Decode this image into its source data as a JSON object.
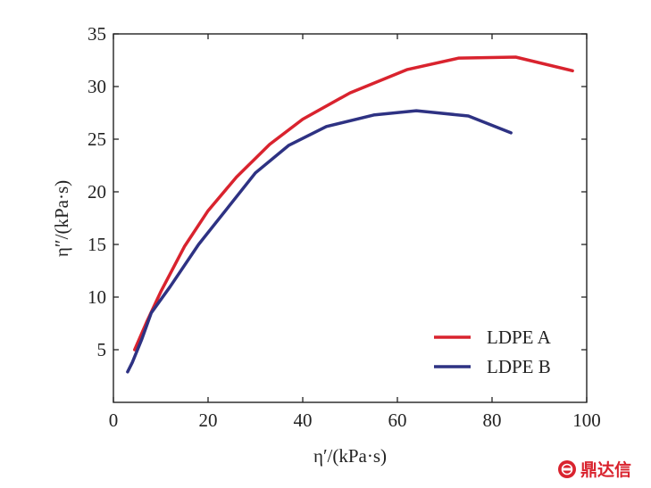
{
  "chart_data": {
    "type": "line",
    "xlabel": "η′/(kPa·s)",
    "ylabel": "η″/(kPa·s)",
    "xlim": [
      0,
      100
    ],
    "ylim": [
      0,
      35
    ],
    "xticks": [
      0,
      20,
      40,
      60,
      80,
      100
    ],
    "yticks": [
      5,
      10,
      15,
      20,
      25,
      30,
      35
    ],
    "grid": false,
    "legend_position": "bottom-right",
    "series": [
      {
        "name": "LDPE A",
        "color": "#d9232e",
        "x": [
          4.5,
          7,
          10,
          15,
          20,
          26,
          33,
          40,
          50,
          62,
          73,
          85,
          97
        ],
        "y": [
          5.0,
          7.6,
          10.5,
          14.8,
          18.2,
          21.4,
          24.5,
          26.9,
          29.4,
          31.6,
          32.7,
          32.8,
          31.5
        ]
      },
      {
        "name": "LDPE B",
        "color": "#2e3283",
        "x": [
          3,
          4,
          6,
          8,
          12,
          18,
          24,
          30,
          37,
          45,
          55,
          64,
          75,
          84
        ],
        "y": [
          2.9,
          3.8,
          6.0,
          8.5,
          11.0,
          15.0,
          18.4,
          21.8,
          24.4,
          26.2,
          27.3,
          27.7,
          27.2,
          25.6
        ]
      }
    ]
  },
  "watermark": {
    "icon": "brand-logo-icon",
    "text": "鼎达信",
    "color": "#d9232e"
  }
}
